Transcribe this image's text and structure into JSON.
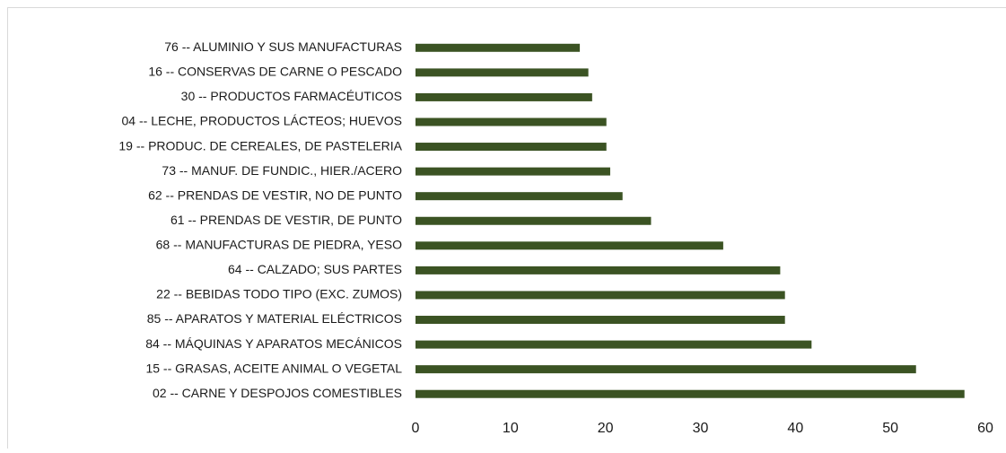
{
  "chart_data": {
    "type": "bar",
    "orientation": "horizontal",
    "categories": [
      "76 -- ALUMINIO Y SUS MANUFACTURAS",
      "16 -- CONSERVAS DE CARNE O PESCADO",
      "30 -- PRODUCTOS FARMACÉUTICOS",
      "04 -- LECHE, PRODUCTOS LÁCTEOS; HUEVOS",
      "19 -- PRODUC. DE CEREALES, DE PASTELERIA",
      "73 -- MANUF. DE FUNDIC., HIER./ACERO",
      "62 -- PRENDAS DE VESTIR, NO DE PUNTO",
      "61 -- PRENDAS DE VESTIR, DE PUNTO",
      "68 -- MANUFACTURAS DE PIEDRA, YESO",
      "64 -- CALZADO; SUS PARTES",
      "22 -- BEBIDAS TODO TIPO (EXC. ZUMOS)",
      "85 -- APARATOS Y MATERIAL ELÉCTRICOS",
      "84 -- MÁQUINAS Y APARATOS MECÁNICOS",
      "15 -- GRASAS, ACEITE ANIMAL O VEGETAL",
      "02 -- CARNE Y DESPOJOS COMESTIBLES"
    ],
    "values": [
      17.3,
      18.2,
      18.6,
      20.1,
      20.1,
      20.5,
      21.8,
      24.8,
      32.4,
      38.4,
      38.9,
      38.9,
      41.7,
      52.7,
      57.8
    ],
    "color": "#3b5323",
    "xlim": [
      0,
      60
    ],
    "xticks": [
      0,
      10,
      20,
      30,
      40,
      50,
      60
    ],
    "grid": false
  }
}
